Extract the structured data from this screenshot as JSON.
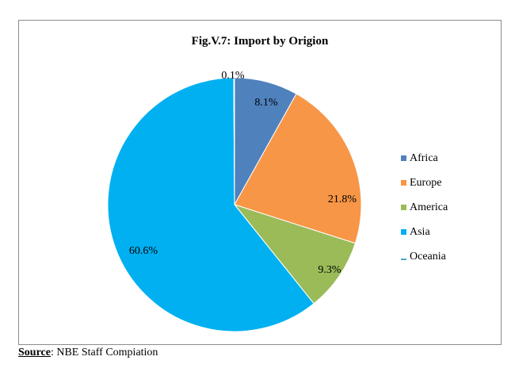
{
  "chart_data": {
    "type": "pie",
    "title": "Fig.V.7: Import by Origion",
    "categories": [
      "Africa",
      "Europe",
      "America",
      "Asia",
      "Oceania"
    ],
    "values": [
      8.1,
      21.8,
      9.3,
      60.6,
      0.1
    ],
    "data_labels": [
      "8.1%",
      "21.8%",
      "9.3%",
      "60.6%",
      "0.1%"
    ],
    "colors": [
      "#4f81bd",
      "#f79646",
      "#9bbb59",
      "#00b0f0",
      "#4bacc6"
    ],
    "legend_position": "right",
    "start_angle": "top, clockwise"
  },
  "source": {
    "label": "Source",
    "separator": ":",
    "text": " NBE Staff Compiation"
  }
}
